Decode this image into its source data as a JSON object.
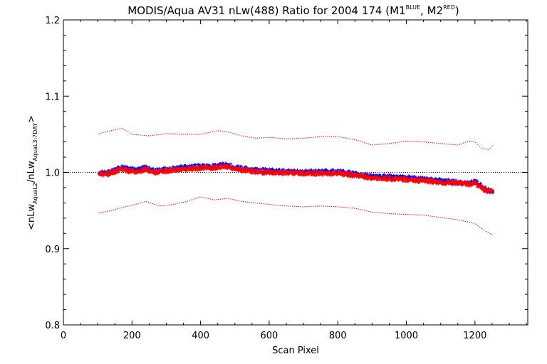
{
  "chart_data": {
    "type": "scatter",
    "title": {
      "main": "MODIS/Aqua AV31 nLw(488) Ratio for 2004 174 (M1",
      "sup1": "BLUE",
      "mid": ", M2",
      "sup2": "RED",
      "end": ")"
    },
    "xlabel": "Scan Pixel",
    "ylabel": {
      "open": "<nLw",
      "sub1": "AquaL2",
      "slash": "/nLw",
      "sub2": "AquaL3:7DAY",
      "close": ">"
    },
    "xlim": [
      0,
      1354
    ],
    "ylim": [
      0.8,
      1.2
    ],
    "x_ticks": [
      0,
      200,
      400,
      600,
      800,
      1000,
      1200
    ],
    "x_tick_labels": [
      "0",
      "200",
      "400",
      "600",
      "800",
      "1000",
      "1200"
    ],
    "y_ticks": [
      0.8,
      0.9,
      1.0,
      1.1,
      1.2
    ],
    "y_tick_labels": [
      "0.8",
      "0.9",
      "1.0",
      "1.1",
      "1.2"
    ],
    "reference_line_y": 1.0,
    "x_range": [
      104,
      1252
    ],
    "series": [
      {
        "color": "#0000ff",
        "marker": "plus",
        "mean": [
          [
            104,
            0.999
          ],
          [
            130,
            0.999
          ],
          [
            150,
            1.003
          ],
          [
            170,
            1.007
          ],
          [
            190,
            1.004
          ],
          [
            215,
            1.003
          ],
          [
            240,
            1.006
          ],
          [
            265,
            1.002
          ],
          [
            300,
            1.004
          ],
          [
            350,
            1.006
          ],
          [
            400,
            1.008
          ],
          [
            440,
            1.008
          ],
          [
            470,
            1.01
          ],
          [
            520,
            1.005
          ],
          [
            560,
            1.003
          ],
          [
            600,
            1.002
          ],
          [
            650,
            1.001
          ],
          [
            700,
            1.0
          ],
          [
            750,
            1.001
          ],
          [
            800,
            1.001
          ],
          [
            850,
            0.998
          ],
          [
            900,
            0.995
          ],
          [
            950,
            0.994
          ],
          [
            1000,
            0.993
          ],
          [
            1050,
            0.991
          ],
          [
            1100,
            0.989
          ],
          [
            1150,
            0.987
          ],
          [
            1180,
            0.985
          ],
          [
            1200,
            0.988
          ],
          [
            1220,
            0.982
          ],
          [
            1235,
            0.977
          ],
          [
            1252,
            0.975
          ]
        ]
      },
      {
        "color": "#ff0000",
        "marker": "plus",
        "mean": [
          [
            104,
            0.998
          ],
          [
            130,
            0.998
          ],
          [
            150,
            1.001
          ],
          [
            170,
            1.005
          ],
          [
            190,
            1.002
          ],
          [
            215,
            1.001
          ],
          [
            240,
            1.004
          ],
          [
            265,
            1.0
          ],
          [
            300,
            1.002
          ],
          [
            350,
            1.004
          ],
          [
            400,
            1.006
          ],
          [
            440,
            1.006
          ],
          [
            470,
            1.008
          ],
          [
            520,
            1.003
          ],
          [
            560,
            1.001
          ],
          [
            600,
            1.0
          ],
          [
            650,
            0.999
          ],
          [
            700,
            0.999
          ],
          [
            750,
            0.999
          ],
          [
            800,
            0.999
          ],
          [
            850,
            0.996
          ],
          [
            900,
            0.993
          ],
          [
            950,
            0.992
          ],
          [
            1000,
            0.991
          ],
          [
            1050,
            0.989
          ],
          [
            1100,
            0.987
          ],
          [
            1150,
            0.986
          ],
          [
            1180,
            0.985
          ],
          [
            1200,
            0.986
          ],
          [
            1220,
            0.98
          ],
          [
            1235,
            0.975
          ],
          [
            1252,
            0.976
          ]
        ]
      }
    ],
    "bands": [
      {
        "color": "#ff0000",
        "marker": "dot",
        "values": [
          [
            104,
            1.051
          ],
          [
            140,
            1.055
          ],
          [
            170,
            1.058
          ],
          [
            200,
            1.05
          ],
          [
            250,
            1.048
          ],
          [
            300,
            1.051
          ],
          [
            350,
            1.05
          ],
          [
            400,
            1.05
          ],
          [
            450,
            1.055
          ],
          [
            480,
            1.053
          ],
          [
            520,
            1.048
          ],
          [
            560,
            1.045
          ],
          [
            600,
            1.046
          ],
          [
            650,
            1.044
          ],
          [
            700,
            1.045
          ],
          [
            750,
            1.047
          ],
          [
            800,
            1.047
          ],
          [
            850,
            1.043
          ],
          [
            900,
            1.036
          ],
          [
            950,
            1.038
          ],
          [
            1000,
            1.041
          ],
          [
            1050,
            1.04
          ],
          [
            1100,
            1.038
          ],
          [
            1150,
            1.036
          ],
          [
            1180,
            1.041
          ],
          [
            1200,
            1.04
          ],
          [
            1220,
            1.032
          ],
          [
            1240,
            1.03
          ],
          [
            1252,
            1.036
          ]
        ]
      },
      {
        "color": "#ff0000",
        "marker": "dot",
        "values": [
          [
            104,
            0.947
          ],
          [
            140,
            0.95
          ],
          [
            170,
            0.954
          ],
          [
            200,
            0.957
          ],
          [
            240,
            0.962
          ],
          [
            280,
            0.956
          ],
          [
            320,
            0.958
          ],
          [
            360,
            0.962
          ],
          [
            400,
            0.968
          ],
          [
            440,
            0.964
          ],
          [
            480,
            0.966
          ],
          [
            520,
            0.962
          ],
          [
            560,
            0.96
          ],
          [
            600,
            0.958
          ],
          [
            650,
            0.956
          ],
          [
            700,
            0.955
          ],
          [
            750,
            0.956
          ],
          [
            800,
            0.955
          ],
          [
            850,
            0.953
          ],
          [
            900,
            0.948
          ],
          [
            950,
            0.946
          ],
          [
            1000,
            0.945
          ],
          [
            1050,
            0.944
          ],
          [
            1100,
            0.941
          ],
          [
            1150,
            0.938
          ],
          [
            1180,
            0.935
          ],
          [
            1200,
            0.933
          ],
          [
            1230,
            0.923
          ],
          [
            1252,
            0.918
          ]
        ]
      }
    ]
  }
}
